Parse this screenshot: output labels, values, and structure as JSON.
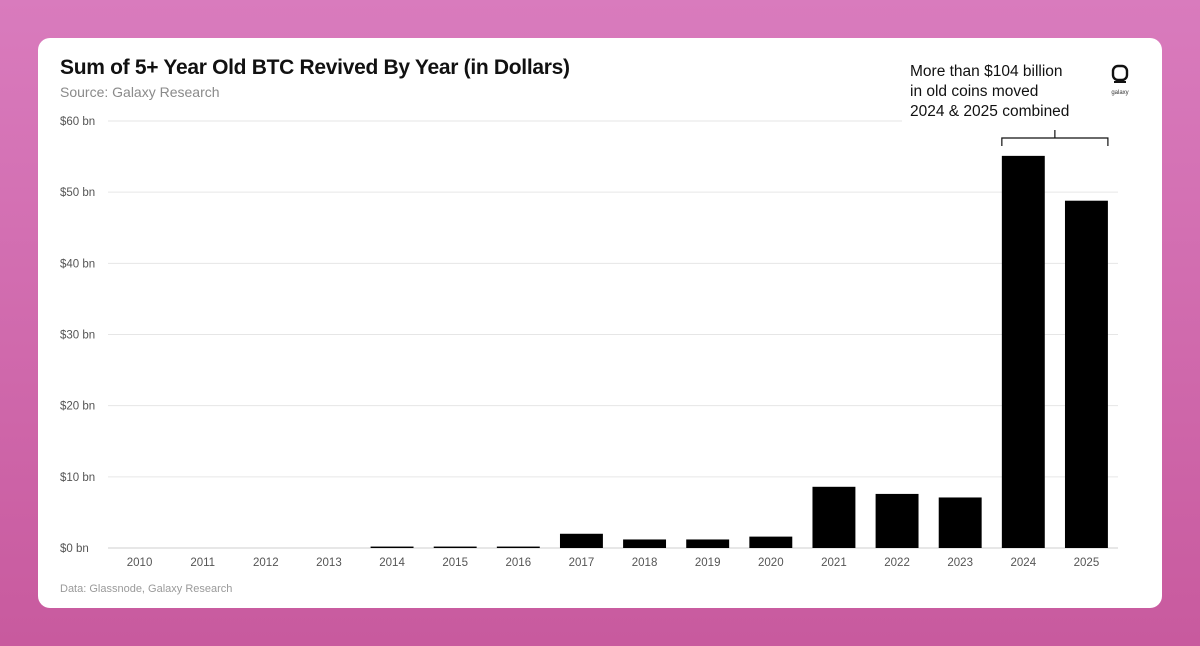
{
  "chart_data": {
    "type": "bar",
    "title": "Sum of 5+ Year Old BTC Revived By Year (in Dollars)",
    "subtitle": "Source: Galaxy Research",
    "categories": [
      "2010",
      "2011",
      "2012",
      "2013",
      "2014",
      "2015",
      "2016",
      "2017",
      "2018",
      "2019",
      "2020",
      "2021",
      "2022",
      "2023",
      "2024",
      "2025"
    ],
    "values": [
      0,
      0,
      0,
      0,
      0.2,
      0.2,
      0.2,
      2.0,
      1.2,
      1.2,
      1.6,
      8.6,
      7.6,
      7.1,
      55.1,
      48.8
    ],
    "ylim": [
      0,
      60
    ],
    "yticks": [
      0,
      10,
      20,
      30,
      40,
      50,
      60
    ],
    "ytick_labels": [
      "$0 bn",
      "$10 bn",
      "$20 bn",
      "$30 bn",
      "$40 bn",
      "$50 bn",
      "$60 bn"
    ],
    "xlabel": "",
    "ylabel": "",
    "grid": true,
    "bar_color": "#000000",
    "annotation": {
      "lines": [
        "More than $104 billion",
        "in old coins moved",
        "2024 & 2025 combined"
      ],
      "spans_categories": [
        "2024",
        "2025"
      ]
    },
    "footer": "Data: Glassnode, Galaxy Research"
  },
  "logo": {
    "label": "galaxy"
  },
  "colors": {
    "background": "#d06aad",
    "card": "#ffffff",
    "bar": "#000000",
    "grid": "#e6e6e6"
  }
}
